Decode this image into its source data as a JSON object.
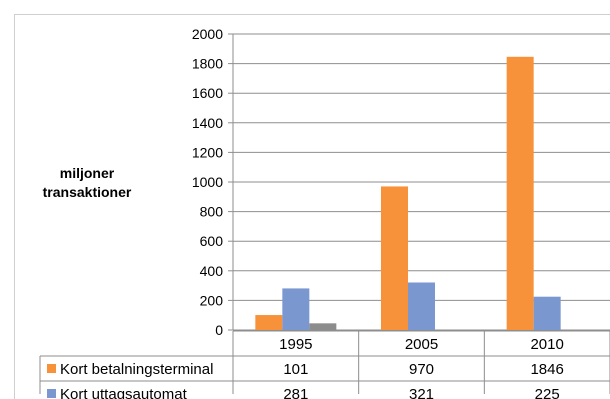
{
  "chart_data": {
    "type": "bar",
    "ylabel_lines": [
      "miljoner",
      "transaktioner"
    ],
    "categories": [
      "1995",
      "2005",
      "2010"
    ],
    "ylim": [
      0,
      2000
    ],
    "yticks": [
      0,
      200,
      400,
      600,
      800,
      1000,
      1200,
      1400,
      1600,
      1800,
      2000
    ],
    "grid": true,
    "legend_placement": "data table below plot",
    "series": [
      {
        "name": "Kort betalningsterminal",
        "values": [
          101,
          970,
          1846
        ],
        "color": "#f7923a"
      },
      {
        "name": "Kort uttagsautomat",
        "values": [
          281,
          321,
          225
        ],
        "color": "#7b97cf"
      },
      {
        "name": "",
        "values": [
          45,
          0,
          0
        ],
        "color": "#8c8c8c"
      }
    ],
    "table_rows": [
      {
        "label": "Kort betalningsterminal",
        "values": [
          "101",
          "970",
          "1846"
        ]
      },
      {
        "label": "Kort uttagsautomat",
        "values": [
          "281",
          "321",
          "225"
        ]
      }
    ]
  }
}
